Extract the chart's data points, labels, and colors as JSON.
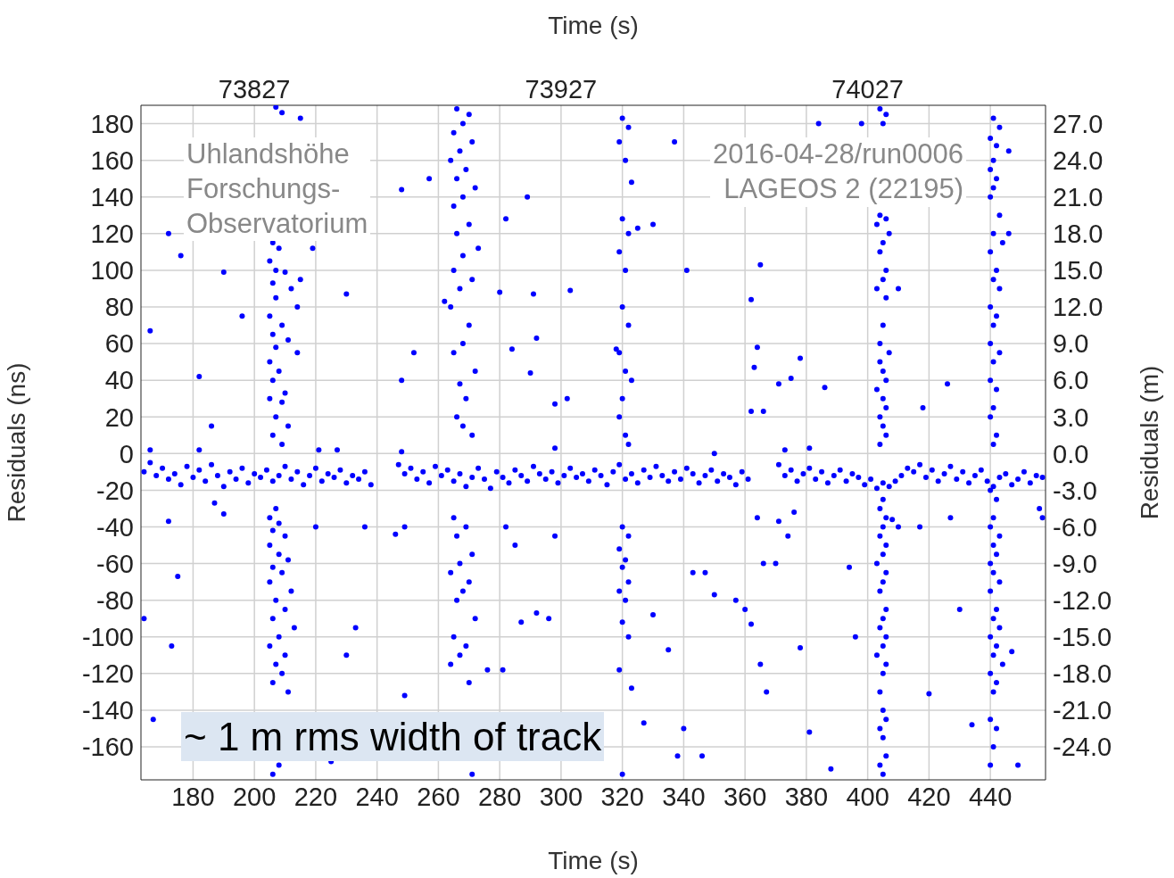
{
  "chart_data": {
    "type": "scatter",
    "xlabel": "Time (s)",
    "x2label": "Time (s)",
    "ylabel": "Residuals (ns)",
    "y2label": "Residuals (m)",
    "annotations": [
      "Uhlandshöhe\nForschungs-\nObservatorium",
      "2016-04-28/run0006\nLAGEOS 2 (22195)",
      "~ 1 m rms width of track"
    ],
    "xlim": [
      163,
      458
    ],
    "xticks": [
      180,
      200,
      220,
      240,
      260,
      280,
      300,
      320,
      340,
      360,
      380,
      400,
      420,
      440
    ],
    "x2lim": [
      73790,
      74085
    ],
    "x2ticks": [
      73827,
      73927,
      74027
    ],
    "ylim": [
      -178,
      190
    ],
    "yticks": [
      180,
      160,
      140,
      120,
      100,
      80,
      60,
      40,
      20,
      0,
      -20,
      -40,
      -60,
      -80,
      -100,
      -120,
      -140,
      -160
    ],
    "y2lim": [
      -26.7,
      28.5
    ],
    "y2ticks": [
      {
        "value": 27,
        "label": "27.0"
      },
      {
        "value": 24,
        "label": "24.0"
      },
      {
        "value": 21,
        "label": "21.0"
      },
      {
        "value": 18,
        "label": "18.0"
      },
      {
        "value": 15,
        "label": "15.0"
      },
      {
        "value": 12,
        "label": "12.0"
      },
      {
        "value": 9,
        "label": "9.0"
      },
      {
        "value": 6,
        "label": "6.0"
      },
      {
        "value": 3,
        "label": "3.0"
      },
      {
        "value": 0,
        "label": "0.0"
      },
      {
        "value": -3,
        "label": "-3.0"
      },
      {
        "value": -6,
        "label": "-6.0"
      },
      {
        "value": -9,
        "label": "-9.0"
      },
      {
        "value": -12,
        "label": "-12.0"
      },
      {
        "value": -15,
        "label": "-15.0"
      },
      {
        "value": -18,
        "label": "-18.0"
      },
      {
        "value": -21,
        "label": "-21.0"
      },
      {
        "value": -24,
        "label": "-24.0"
      }
    ],
    "grid": true,
    "marker": "circle",
    "color": "#0000ff",
    "x": [
      164,
      166,
      168,
      170,
      172,
      174,
      176,
      178,
      180,
      182,
      184,
      186,
      188,
      190,
      192,
      194,
      196,
      198,
      200,
      202,
      204,
      206,
      208,
      210,
      212,
      214,
      216,
      218,
      220,
      222,
      224,
      226,
      228,
      230,
      232,
      234,
      236,
      238,
      247,
      249,
      251,
      253,
      255,
      257,
      259,
      261,
      263,
      265,
      267,
      269,
      271,
      273,
      275,
      277,
      279,
      281,
      283,
      285,
      287,
      289,
      291,
      293,
      295,
      297,
      299,
      301,
      303,
      305,
      307,
      309,
      311,
      313,
      315,
      317,
      319,
      321,
      323,
      325,
      327,
      329,
      331,
      333,
      335,
      337,
      339,
      341,
      343,
      345,
      347,
      349,
      351,
      353,
      355,
      357,
      359,
      361,
      371,
      373,
      375,
      377,
      379,
      381,
      383,
      385,
      387,
      389,
      391,
      393,
      395,
      397,
      399,
      401,
      403,
      405,
      407,
      409,
      411,
      413,
      415,
      417,
      419,
      421,
      423,
      425,
      427,
      429,
      431,
      433,
      435,
      437,
      439,
      441,
      443,
      445,
      447,
      449,
      451,
      453,
      455,
      457,
      207,
      209,
      215,
      206,
      208,
      205,
      207,
      210,
      206,
      212,
      207,
      214,
      205,
      209,
      206,
      211,
      207,
      214,
      205,
      208,
      206,
      210,
      205,
      209,
      207,
      211,
      206,
      209,
      207,
      205,
      208,
      206,
      210,
      205,
      208,
      211,
      206,
      209,
      205,
      212,
      207,
      210,
      206,
      213,
      208,
      205,
      210,
      207,
      209,
      206,
      211,
      208,
      206,
      266,
      270,
      268,
      265,
      271,
      267,
      264,
      269,
      266,
      272,
      268,
      265,
      270,
      266,
      273,
      268,
      265,
      271,
      267,
      264,
      270,
      268,
      265,
      272,
      267,
      269,
      266,
      268,
      271,
      265,
      269,
      266,
      271,
      267,
      264,
      270,
      268,
      266,
      272,
      265,
      269,
      267,
      264,
      270,
      271,
      320,
      322,
      319,
      321,
      323,
      320,
      322,
      319,
      321,
      320,
      322,
      319,
      321,
      323,
      320,
      319,
      321,
      322,
      320,
      322,
      319,
      321,
      320,
      322,
      319,
      321,
      320,
      322,
      319,
      323,
      320,
      404,
      406,
      405,
      404,
      406,
      403,
      407,
      405,
      404,
      406,
      405,
      403,
      406,
      405,
      404,
      407,
      404,
      405,
      406,
      403,
      405,
      406,
      404,
      405,
      406,
      404,
      405,
      404,
      406,
      405,
      404,
      406,
      405,
      403,
      406,
      405,
      404,
      406,
      405,
      404,
      406,
      405,
      403,
      406,
      405,
      404,
      405,
      406,
      404,
      405,
      406,
      404,
      405,
      441,
      443,
      440,
      442,
      441,
      440,
      442,
      441,
      440,
      443,
      441,
      444,
      440,
      442,
      441,
      443,
      440,
      442,
      441,
      440,
      443,
      441,
      440,
      442,
      441,
      440,
      442,
      441,
      440,
      442,
      441,
      440,
      443,
      441,
      442,
      440,
      441,
      443,
      440,
      442,
      441,
      443,
      440,
      442,
      441,
      444,
      440,
      442,
      441,
      440,
      442,
      441,
      440,
      166,
      172,
      176,
      182,
      186,
      190,
      196,
      219,
      215,
      230,
      248,
      257,
      252,
      262,
      248,
      282,
      289,
      291,
      280,
      284,
      292,
      290,
      298,
      302,
      303,
      337,
      341,
      365,
      362,
      364,
      363,
      371,
      375,
      378,
      386,
      384,
      398,
      410,
      418,
      426,
      446,
      446,
      325,
      330,
      318,
      366,
      362,
      166,
      182,
      221,
      227,
      248,
      298,
      350,
      373,
      381,
      164,
      167,
      172,
      173,
      175,
      187,
      190,
      220,
      236,
      246,
      249,
      282,
      285,
      298,
      287,
      292,
      296,
      276,
      281,
      330,
      335,
      338,
      343,
      347,
      350,
      357,
      360,
      362,
      365,
      367,
      370,
      366,
      364,
      371,
      374,
      376,
      378,
      381,
      388,
      396,
      417,
      420,
      427,
      430,
      434,
      447,
      449,
      456,
      457,
      346,
      340,
      327,
      394,
      410,
      408,
      233,
      230,
      249,
      225
    ],
    "values": [
      -10,
      -5,
      -12,
      -8,
      -14,
      -11,
      -17,
      -7,
      -13,
      -9,
      -15,
      -6,
      -12,
      -18,
      -10,
      -14,
      -8,
      -16,
      -11,
      -13,
      -9,
      -15,
      -12,
      -7,
      -14,
      -10,
      -17,
      -12,
      -8,
      -15,
      -11,
      -13,
      -9,
      -16,
      -12,
      -14,
      -10,
      -17,
      -6,
      -11,
      -8,
      -14,
      -10,
      -16,
      -7,
      -12,
      -9,
      -15,
      -11,
      -18,
      -13,
      -8,
      -14,
      -19,
      -10,
      -13,
      -16,
      -9,
      -12,
      -15,
      -7,
      -11,
      -14,
      -10,
      -16,
      -12,
      -8,
      -13,
      -11,
      -15,
      -9,
      -12,
      -17,
      -10,
      -6,
      -14,
      -11,
      -16,
      -9,
      -13,
      -7,
      -12,
      -15,
      -10,
      -14,
      -8,
      -11,
      -16,
      -12,
      -9,
      -15,
      -11,
      -13,
      -17,
      -10,
      -14,
      -6,
      -12,
      -9,
      -15,
      -11,
      -8,
      -14,
      -10,
      -16,
      -12,
      -9,
      -15,
      -11,
      -13,
      -17,
      -14,
      -19,
      -16,
      -18,
      -15,
      -12,
      -8,
      -10,
      -6,
      -13,
      -9,
      -15,
      -11,
      -7,
      -14,
      -10,
      -16,
      -12,
      -9,
      -15,
      -18,
      -13,
      -11,
      -17,
      -14,
      -10,
      -16,
      -12,
      -13,
      189,
      186,
      183,
      115,
      112,
      105,
      100,
      99,
      93,
      90,
      85,
      80,
      75,
      70,
      65,
      62,
      58,
      55,
      50,
      45,
      40,
      33,
      30,
      28,
      20,
      15,
      10,
      5,
      -30,
      -35,
      -38,
      -42,
      -45,
      -50,
      -55,
      -58,
      -62,
      -65,
      -70,
      -75,
      -80,
      -85,
      -90,
      -95,
      -100,
      -105,
      -110,
      -115,
      -120,
      -125,
      -130,
      -170,
      -175,
      188,
      185,
      180,
      175,
      170,
      165,
      160,
      155,
      150,
      145,
      140,
      135,
      125,
      120,
      112,
      108,
      100,
      95,
      90,
      80,
      70,
      60,
      55,
      45,
      38,
      30,
      20,
      15,
      10,
      -35,
      -40,
      -45,
      -55,
      -60,
      -65,
      -70,
      -75,
      -80,
      -90,
      -100,
      -105,
      -110,
      -115,
      -125,
      -175,
      183,
      178,
      170,
      160,
      148,
      128,
      120,
      110,
      100,
      80,
      70,
      55,
      45,
      40,
      30,
      20,
      10,
      5,
      -40,
      -45,
      -52,
      -58,
      -62,
      -70,
      -75,
      -80,
      -92,
      -100,
      -118,
      -128,
      -175,
      188,
      185,
      180,
      130,
      128,
      125,
      120,
      115,
      110,
      100,
      95,
      90,
      85,
      70,
      60,
      55,
      50,
      45,
      40,
      35,
      30,
      25,
      20,
      15,
      10,
      5,
      -25,
      -30,
      -35,
      -40,
      -45,
      -50,
      -55,
      -60,
      -65,
      -70,
      -75,
      -85,
      -90,
      -95,
      -100,
      -105,
      -110,
      -115,
      -120,
      -130,
      -140,
      -145,
      -150,
      -155,
      -165,
      -170,
      -175,
      183,
      178,
      172,
      168,
      160,
      155,
      150,
      145,
      140,
      130,
      120,
      115,
      110,
      100,
      95,
      90,
      80,
      75,
      70,
      60,
      55,
      50,
      40,
      35,
      25,
      20,
      10,
      5,
      -20,
      -25,
      -35,
      -40,
      -45,
      -50,
      -55,
      -60,
      -65,
      -70,
      -75,
      -85,
      -90,
      -95,
      -100,
      -105,
      -110,
      -115,
      -120,
      -125,
      -130,
      -145,
      -150,
      -160,
      -170,
      67,
      120,
      108,
      42,
      15,
      99,
      75,
      112,
      95,
      87,
      144,
      150,
      55,
      83,
      40,
      128,
      140,
      87,
      88,
      57,
      63,
      44,
      27,
      30,
      89,
      170,
      100,
      103,
      84,
      58,
      47,
      38,
      41,
      52,
      36,
      180,
      180,
      90,
      25,
      38,
      165,
      120,
      123,
      125,
      57,
      23,
      23,
      2,
      2,
      2,
      2,
      1,
      3,
      0,
      2,
      3,
      -90,
      -145,
      -37,
      -105,
      -67,
      -27,
      -33,
      -40,
      -40,
      -44,
      -40,
      -40,
      -50,
      -45,
      -92,
      -87,
      -90,
      -118,
      -118,
      -88,
      -107,
      -165,
      -65,
      -65,
      -77,
      -80,
      -85,
      -93,
      -115,
      -130,
      -60,
      -60,
      -35,
      -37,
      -45,
      -32,
      -106,
      -152,
      -172,
      -100,
      -40,
      -131,
      -35,
      -85,
      -148,
      -108,
      -170,
      -30,
      -35,
      -165,
      -150,
      -147,
      -62,
      -40,
      -36,
      -95,
      -110,
      -132,
      -168
    ]
  }
}
